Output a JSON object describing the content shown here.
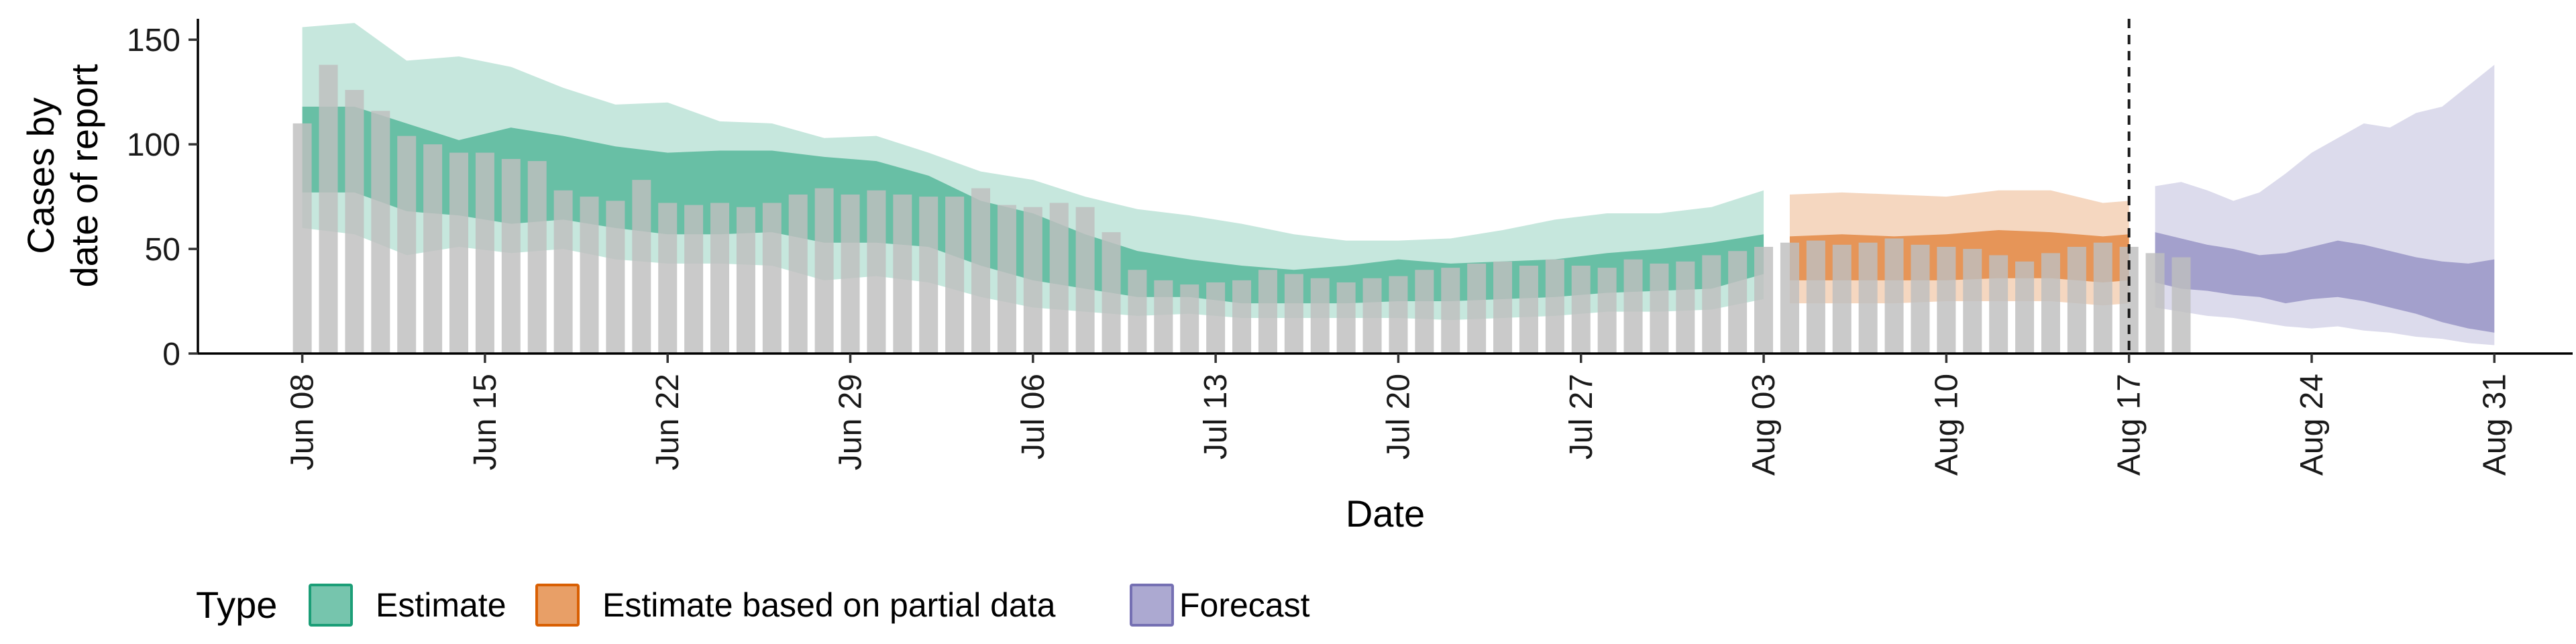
{
  "chart_data": {
    "type": "bar",
    "xlabel": "Date",
    "ylabel_lines": [
      "Cases by",
      "date of report"
    ],
    "ylim": [
      0,
      160
    ],
    "yticks": [
      0,
      50,
      100,
      150
    ],
    "start_date": "2020-06-08",
    "xlim_days": [
      -4,
      87
    ],
    "xticks": [
      {
        "label": "Jun 08",
        "day": 0
      },
      {
        "label": "Jun 15",
        "day": 7
      },
      {
        "label": "Jun 22",
        "day": 14
      },
      {
        "label": "Jun 29",
        "day": 21
      },
      {
        "label": "Jul 06",
        "day": 28
      },
      {
        "label": "Jul 13",
        "day": 35
      },
      {
        "label": "Jul 20",
        "day": 42
      },
      {
        "label": "Jul 27",
        "day": 49
      },
      {
        "label": "Aug 03",
        "day": 56
      },
      {
        "label": "Aug 10",
        "day": 63
      },
      {
        "label": "Aug 17",
        "day": 70
      },
      {
        "label": "Aug 24",
        "day": 77
      },
      {
        "label": "Aug 31",
        "day": 84
      }
    ],
    "vline_day": 70.0,
    "bar_color": "#bebebe",
    "reported_cases": [
      110,
      138,
      126,
      116,
      104,
      100,
      96,
      96,
      93,
      92,
      78,
      75,
      73,
      83,
      72,
      71,
      72,
      70,
      72,
      76,
      79,
      76,
      78,
      76,
      75,
      75,
      79,
      71,
      70,
      72,
      70,
      58,
      40,
      35,
      33,
      34,
      35,
      40,
      38,
      36,
      34,
      36,
      37,
      40,
      41,
      43,
      44,
      42,
      45,
      42,
      41,
      45,
      43,
      44,
      47,
      49,
      51,
      53,
      54,
      52,
      53,
      55,
      52,
      51,
      50,
      47,
      44,
      48,
      51,
      53,
      51,
      48,
      46
    ],
    "series": [
      {
        "name": "Estimate",
        "color": "#1b9e77",
        "days": [
          0,
          2,
          4,
          6,
          8,
          10,
          12,
          14,
          16,
          18,
          20,
          22,
          24,
          26,
          28,
          30,
          32,
          34,
          36,
          38,
          40,
          42,
          44,
          46,
          48,
          50,
          52,
          54,
          56
        ],
        "median": [
          97,
          97,
          91,
          84,
          82,
          84,
          79,
          77,
          76,
          76,
          74,
          74,
          68,
          60,
          55,
          45,
          38,
          35,
          33,
          32,
          33,
          35,
          34,
          35,
          36,
          38,
          40,
          42,
          47
        ],
        "lower50": [
          77,
          77,
          68,
          66,
          62,
          64,
          60,
          57,
          57,
          58,
          53,
          53,
          51,
          42,
          35,
          31,
          27,
          27,
          24,
          24,
          24,
          25,
          25,
          26,
          27,
          29,
          30,
          31,
          38
        ],
        "upper50": [
          118,
          118,
          110,
          102,
          108,
          104,
          99,
          96,
          97,
          97,
          94,
          92,
          85,
          73,
          67,
          57,
          49,
          45,
          42,
          40,
          42,
          45,
          43,
          44,
          45,
          48,
          50,
          53,
          57
        ],
        "lower90": [
          60,
          57,
          47,
          51,
          48,
          50,
          45,
          43,
          43,
          42,
          35,
          37,
          34,
          27,
          22,
          20,
          18,
          19,
          17,
          17,
          17,
          17,
          16,
          17,
          18,
          20,
          20,
          21,
          26
        ],
        "upper90": [
          156,
          158,
          140,
          142,
          137,
          127,
          119,
          120,
          111,
          110,
          103,
          104,
          96,
          87,
          83,
          75,
          69,
          66,
          62,
          57,
          54,
          54,
          55,
          59,
          64,
          67,
          67,
          70,
          78
        ]
      },
      {
        "name": "Estimate based on partial data",
        "color": "#d95f02",
        "days": [
          57,
          59,
          61,
          63,
          65,
          67,
          69,
          70
        ],
        "median": [
          45,
          46,
          46,
          46,
          47,
          47,
          45,
          46
        ],
        "lower50": [
          35,
          35,
          35,
          35,
          36,
          36,
          34,
          35
        ],
        "upper50": [
          56,
          57,
          56,
          57,
          59,
          58,
          56,
          57
        ],
        "lower90": [
          24,
          24,
          24,
          25,
          25,
          25,
          23,
          24
        ],
        "upper90": [
          76,
          77,
          76,
          75,
          78,
          78,
          72,
          73
        ]
      },
      {
        "name": "Forecast",
        "color": "#7570b3",
        "days": [
          71,
          72,
          73,
          74,
          75,
          76,
          77,
          78,
          79,
          80,
          81,
          82,
          83,
          84
        ],
        "median": [
          45,
          43,
          40,
          38,
          36,
          36,
          38,
          40,
          38,
          36,
          33,
          30,
          28,
          27
        ],
        "lower50": [
          34,
          31,
          30,
          28,
          27,
          24,
          26,
          27,
          25,
          22,
          19,
          15,
          12,
          10
        ],
        "upper50": [
          58,
          55,
          52,
          50,
          47,
          48,
          51,
          54,
          52,
          49,
          46,
          44,
          43,
          45
        ],
        "lower90": [
          22,
          20,
          18,
          17,
          15,
          13,
          12,
          13,
          11,
          10,
          8,
          7,
          5,
          4
        ],
        "upper90": [
          80,
          82,
          78,
          73,
          77,
          86,
          96,
          103,
          110,
          108,
          115,
          118,
          128,
          138
        ]
      }
    ],
    "legend": {
      "title": "Type",
      "position": "bottom",
      "items": [
        "Estimate",
        "Estimate based on partial data",
        "Forecast"
      ]
    }
  }
}
